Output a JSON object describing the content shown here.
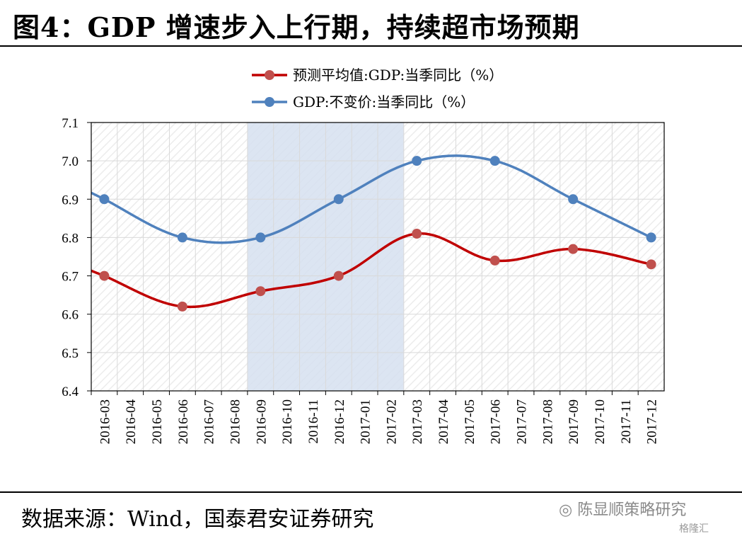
{
  "header": {
    "title": "图4：GDP 增速步入上行期，持续超市场预期"
  },
  "footer": {
    "source": "数据来源：Wind，国泰君安证券研究",
    "watermark": "陈显顺策略研究",
    "watermark_sub": "格隆汇"
  },
  "colors": {
    "consensus": "#C00000",
    "consensus_marker": "#C0504D",
    "gdp": "#4F81BD",
    "highlight": "#D6E0F0",
    "grid": "#D9D9D9"
  },
  "chart_data": {
    "type": "line",
    "categories": [
      "2016-03",
      "2016-04",
      "2016-05",
      "2016-06",
      "2016-07",
      "2016-08",
      "2016-09",
      "2016-10",
      "2016-11",
      "2016-12",
      "2017-01",
      "2017-02",
      "2017-03",
      "2017-04",
      "2017-05",
      "2017-06",
      "2017-07",
      "2017-08",
      "2017-09",
      "2017-10",
      "2017-11",
      "2017-12"
    ],
    "ylim": [
      6.4,
      7.1
    ],
    "yticks": [
      "6.4",
      "6.5",
      "6.6",
      "6.7",
      "6.8",
      "6.9",
      "7.0",
      "7.1"
    ],
    "grid": true,
    "legend_position": "top",
    "highlight_range": [
      "2016-09",
      "2017-03"
    ],
    "series": [
      {
        "name": "预测平均值:GDP:当季同比（%）",
        "points": [
          {
            "x": "2016-03",
            "y": 6.7
          },
          {
            "x": "2016-06",
            "y": 6.62
          },
          {
            "x": "2016-09",
            "y": 6.66
          },
          {
            "x": "2016-12",
            "y": 6.7
          },
          {
            "x": "2017-03",
            "y": 6.81
          },
          {
            "x": "2017-06",
            "y": 6.74
          },
          {
            "x": "2017-09",
            "y": 6.77
          },
          {
            "x": "2017-12",
            "y": 6.73
          }
        ]
      },
      {
        "name": "GDP:不变价:当季同比（%）",
        "points": [
          {
            "x": "2016-03",
            "y": 6.9
          },
          {
            "x": "2016-06",
            "y": 6.8
          },
          {
            "x": "2016-09",
            "y": 6.8
          },
          {
            "x": "2016-12",
            "y": 6.9
          },
          {
            "x": "2017-03",
            "y": 7.0
          },
          {
            "x": "2017-06",
            "y": 7.0
          },
          {
            "x": "2017-09",
            "y": 6.9
          },
          {
            "x": "2017-12",
            "y": 6.8
          }
        ]
      }
    ]
  }
}
